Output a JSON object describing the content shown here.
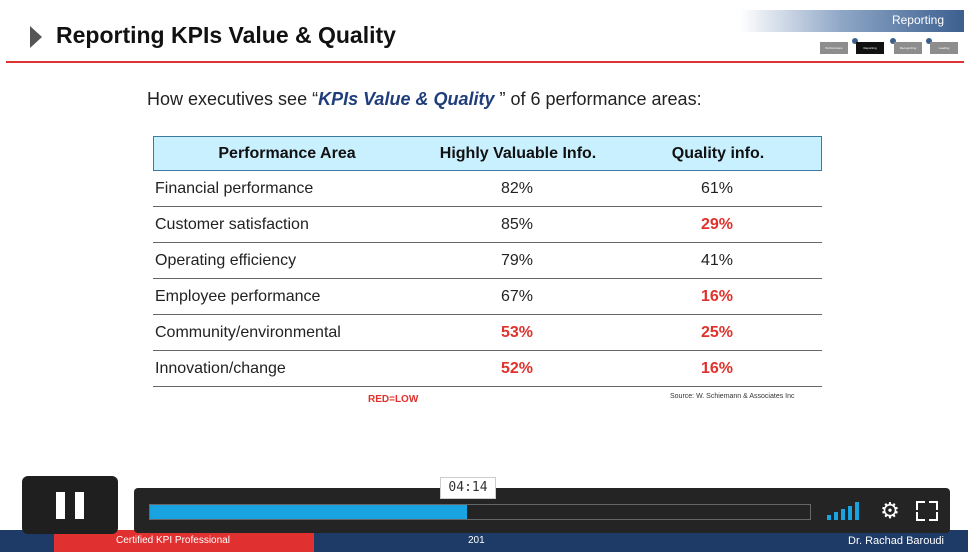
{
  "slide": {
    "title": "Reporting KPIs Value & Quality",
    "corner_label": "Reporting",
    "steps": [
      "Performance",
      "Reporting",
      "Recognizing",
      "Leading"
    ],
    "subtitle_prefix": "How executives see “",
    "subtitle_kpi": "KPIs Value & Quality",
    "subtitle_suffix": " ” of 6 performance areas:",
    "table": {
      "headers": [
        "Performance Area",
        "Highly Valuable Info.",
        "Quality info."
      ],
      "rows": [
        {
          "area": "Financial performance",
          "valuable": "82%",
          "quality": "61%",
          "valuable_low": false,
          "quality_low": false
        },
        {
          "area": "Customer satisfaction",
          "valuable": "85%",
          "quality": "29%",
          "valuable_low": false,
          "quality_low": true
        },
        {
          "area": "Operating efficiency",
          "valuable": "79%",
          "quality": "41%",
          "valuable_low": false,
          "quality_low": false
        },
        {
          "area": "Employee performance",
          "valuable": "67%",
          "quality": "16%",
          "valuable_low": false,
          "quality_low": true
        },
        {
          "area": "Community/environmental",
          "valuable": "53%",
          "quality": "25%",
          "valuable_low": true,
          "quality_low": true
        },
        {
          "area": "Innovation/change",
          "valuable": "52%",
          "quality": "16%",
          "valuable_low": true,
          "quality_low": true
        }
      ]
    },
    "legend": "RED=LOW",
    "source": "Source: W. Schiemann & Associates Inc",
    "footer": {
      "left": "Certified KPI Professional",
      "page": "201",
      "author": "Dr. Rachad Baroudi"
    }
  },
  "player": {
    "time_tooltip": "04:14",
    "progress_fraction": 0.48,
    "icons": {
      "pause": "pause-icon",
      "volume": "volume-icon",
      "settings": "gear-icon",
      "fullscreen": "fullscreen-icon"
    },
    "colors": {
      "accent": "#19a3e0",
      "low": "#e0322c",
      "header_bg": "#c9f0ff"
    }
  }
}
